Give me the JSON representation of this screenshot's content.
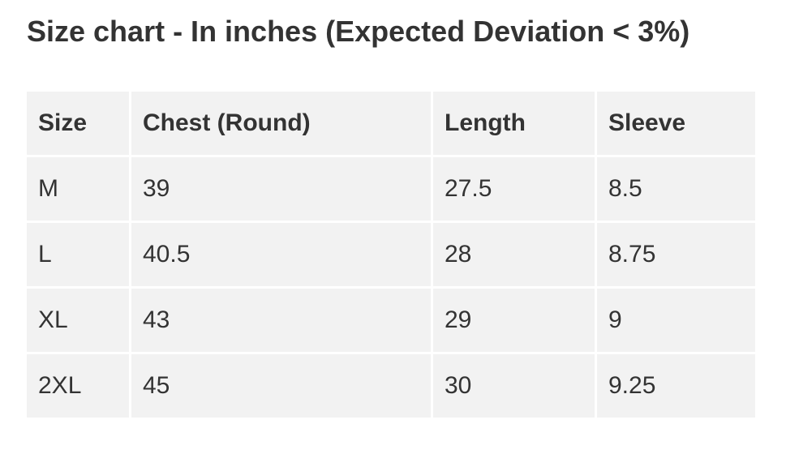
{
  "title": "Size chart - In inches (Expected Deviation < 3%)",
  "table": {
    "header": [
      "Size",
      "Chest (Round)",
      "Length",
      "Sleeve"
    ],
    "rows": [
      [
        "M",
        "39",
        "27.5",
        "8.5"
      ],
      [
        "L",
        "40.5",
        "28",
        "8.75"
      ],
      [
        "XL",
        "43",
        "29",
        "9"
      ],
      [
        "2XL",
        "45",
        "30",
        "9.25"
      ]
    ]
  }
}
